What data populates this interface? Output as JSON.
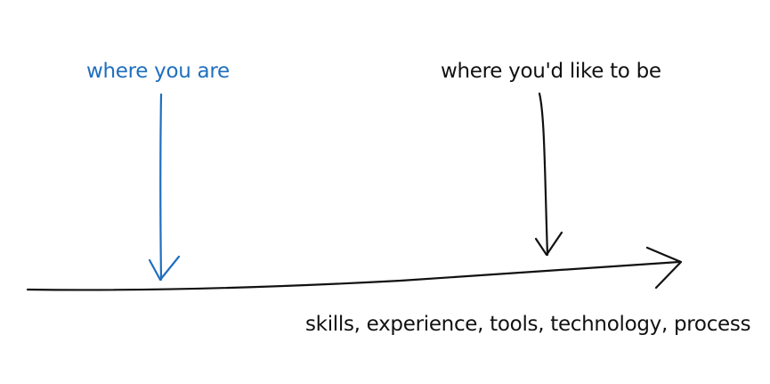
{
  "labels": {
    "current": "where you are",
    "goal": "where you'd like to be",
    "axis": "skills, experience, tools, technology, process"
  },
  "colors": {
    "current": "#1f6fbf",
    "ink": "#111111",
    "background": "#ffffff"
  }
}
